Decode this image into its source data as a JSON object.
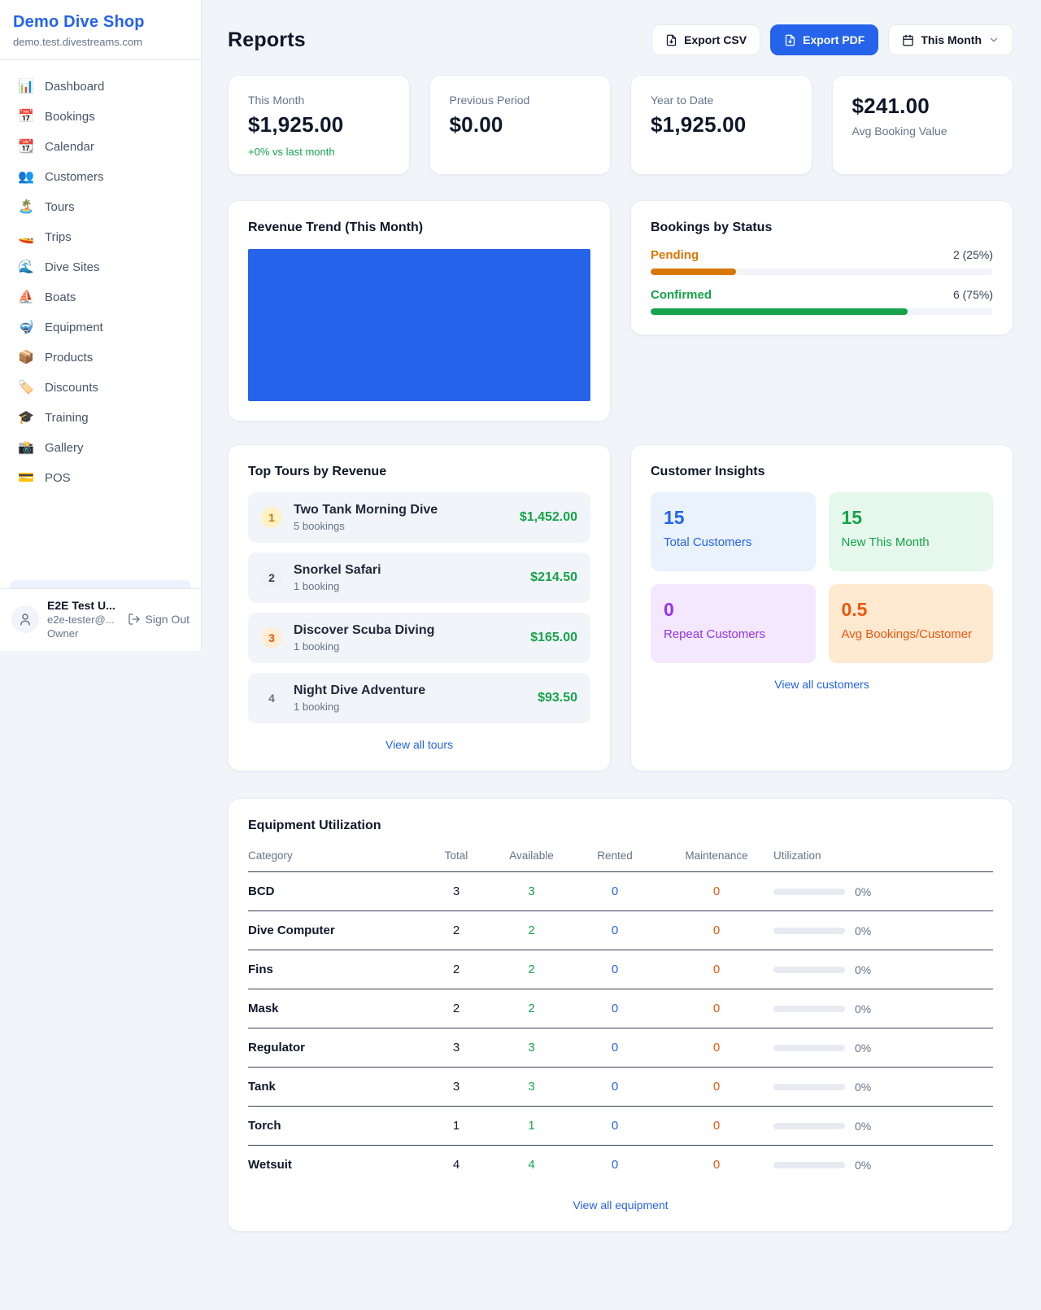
{
  "colors": {
    "accent": "#2563eb",
    "revenue_bar": "#2563eb",
    "green": "#16a34a",
    "pending": "#d97706",
    "confirmed": "#16a34a"
  },
  "sidebar": {
    "title": "Demo Dive Shop",
    "subtitle": "demo.test.divestreams.com",
    "items": [
      {
        "icon": "📊",
        "label": "Dashboard"
      },
      {
        "icon": "📅",
        "label": "Bookings"
      },
      {
        "icon": "📆",
        "label": "Calendar"
      },
      {
        "icon": "👥",
        "label": "Customers"
      },
      {
        "icon": "🏝️",
        "label": "Tours"
      },
      {
        "icon": "🚤",
        "label": "Trips"
      },
      {
        "icon": "🌊",
        "label": "Dive Sites"
      },
      {
        "icon": "⛵",
        "label": "Boats"
      },
      {
        "icon": "🤿",
        "label": "Equipment"
      },
      {
        "icon": "📦",
        "label": "Products"
      },
      {
        "icon": "🏷️",
        "label": "Discounts"
      },
      {
        "icon": "🎓",
        "label": "Training"
      },
      {
        "icon": "📸",
        "label": "Gallery"
      },
      {
        "icon": "💳",
        "label": "POS"
      }
    ],
    "user": {
      "name": "E2E Test U...",
      "email": "e2e-tester@...",
      "role": "Owner",
      "sign_out_label": "Sign Out"
    }
  },
  "header": {
    "title": "Reports",
    "export_csv_label": "Export CSV",
    "export_pdf_label": "Export PDF",
    "period_label": "This Month"
  },
  "stats": [
    {
      "label": "This Month",
      "value": "$1,925.00",
      "delta": "+0% vs last month"
    },
    {
      "label": "Previous Period",
      "value": "$0.00"
    },
    {
      "label": "Year to Date",
      "value": "$1,925.00"
    },
    {
      "label": "Avg Booking Value",
      "value": "$241.00"
    }
  ],
  "revenue_trend": {
    "title": "Revenue Trend (This Month)"
  },
  "bookings_by_status": {
    "title": "Bookings by Status",
    "rows": [
      {
        "label": "Pending",
        "count": "2 (25%)",
        "pct": 25,
        "color": "#d97706"
      },
      {
        "label": "Confirmed",
        "count": "6 (75%)",
        "pct": 75,
        "color": "#16a34a"
      }
    ]
  },
  "top_tours": {
    "title": "Top Tours by Revenue",
    "rows": [
      {
        "rank": "1",
        "name": "Two Tank Morning Dive",
        "bookings": "5 bookings",
        "amount": "$1,452.00",
        "badge_bg": "#fef3c7",
        "badge_color": "#d97706"
      },
      {
        "rank": "2",
        "name": "Snorkel Safari",
        "bookings": "1 booking",
        "amount": "$214.50",
        "badge_bg": "#eef1f5",
        "badge_color": "#334155"
      },
      {
        "rank": "3",
        "name": "Discover Scuba Diving",
        "bookings": "1 booking",
        "amount": "$165.00",
        "badge_bg": "#ffedd5",
        "badge_color": "#ea580c"
      },
      {
        "rank": "4",
        "name": "Night Dive Adventure",
        "bookings": "1 booking",
        "amount": "$93.50",
        "badge_bg": "transparent",
        "badge_color": "#64748b"
      }
    ],
    "view_all_label": "View all tours"
  },
  "customer_insights": {
    "title": "Customer Insights",
    "tiles": [
      {
        "value": "15",
        "label": "Total Customers",
        "bg": "#eaf2fe",
        "color": "#2563eb"
      },
      {
        "value": "15",
        "label": "New This Month",
        "bg": "#e6f7ec",
        "color": "#16a34a"
      },
      {
        "value": "0",
        "label": "Repeat Customers",
        "bg": "#f3e8ff",
        "color": "#9333ea"
      },
      {
        "value": "0.5",
        "label": "Avg Bookings/Customer",
        "bg": "#ffe9d1",
        "color": "#ea580c"
      }
    ],
    "view_all_label": "View all customers"
  },
  "equipment": {
    "title": "Equipment Utilization",
    "columns": [
      "Category",
      "Total",
      "Available",
      "Rented",
      "Maintenance",
      "Utilization"
    ],
    "rows": [
      {
        "category": "BCD",
        "total": "3",
        "available": "3",
        "rented": "0",
        "maintenance": "0",
        "utilization": "0%"
      },
      {
        "category": "Dive Computer",
        "total": "2",
        "available": "2",
        "rented": "0",
        "maintenance": "0",
        "utilization": "0%"
      },
      {
        "category": "Fins",
        "total": "2",
        "available": "2",
        "rented": "0",
        "maintenance": "0",
        "utilization": "0%"
      },
      {
        "category": "Mask",
        "total": "2",
        "available": "2",
        "rented": "0",
        "maintenance": "0",
        "utilization": "0%"
      },
      {
        "category": "Regulator",
        "total": "3",
        "available": "3",
        "rented": "0",
        "maintenance": "0",
        "utilization": "0%"
      },
      {
        "category": "Tank",
        "total": "3",
        "available": "3",
        "rented": "0",
        "maintenance": "0",
        "utilization": "0%"
      },
      {
        "category": "Torch",
        "total": "1",
        "available": "1",
        "rented": "0",
        "maintenance": "0",
        "utilization": "0%"
      },
      {
        "category": "Wetsuit",
        "total": "4",
        "available": "4",
        "rented": "0",
        "maintenance": "0",
        "utilization": "0%"
      }
    ],
    "view_all_label": "View all equipment"
  }
}
